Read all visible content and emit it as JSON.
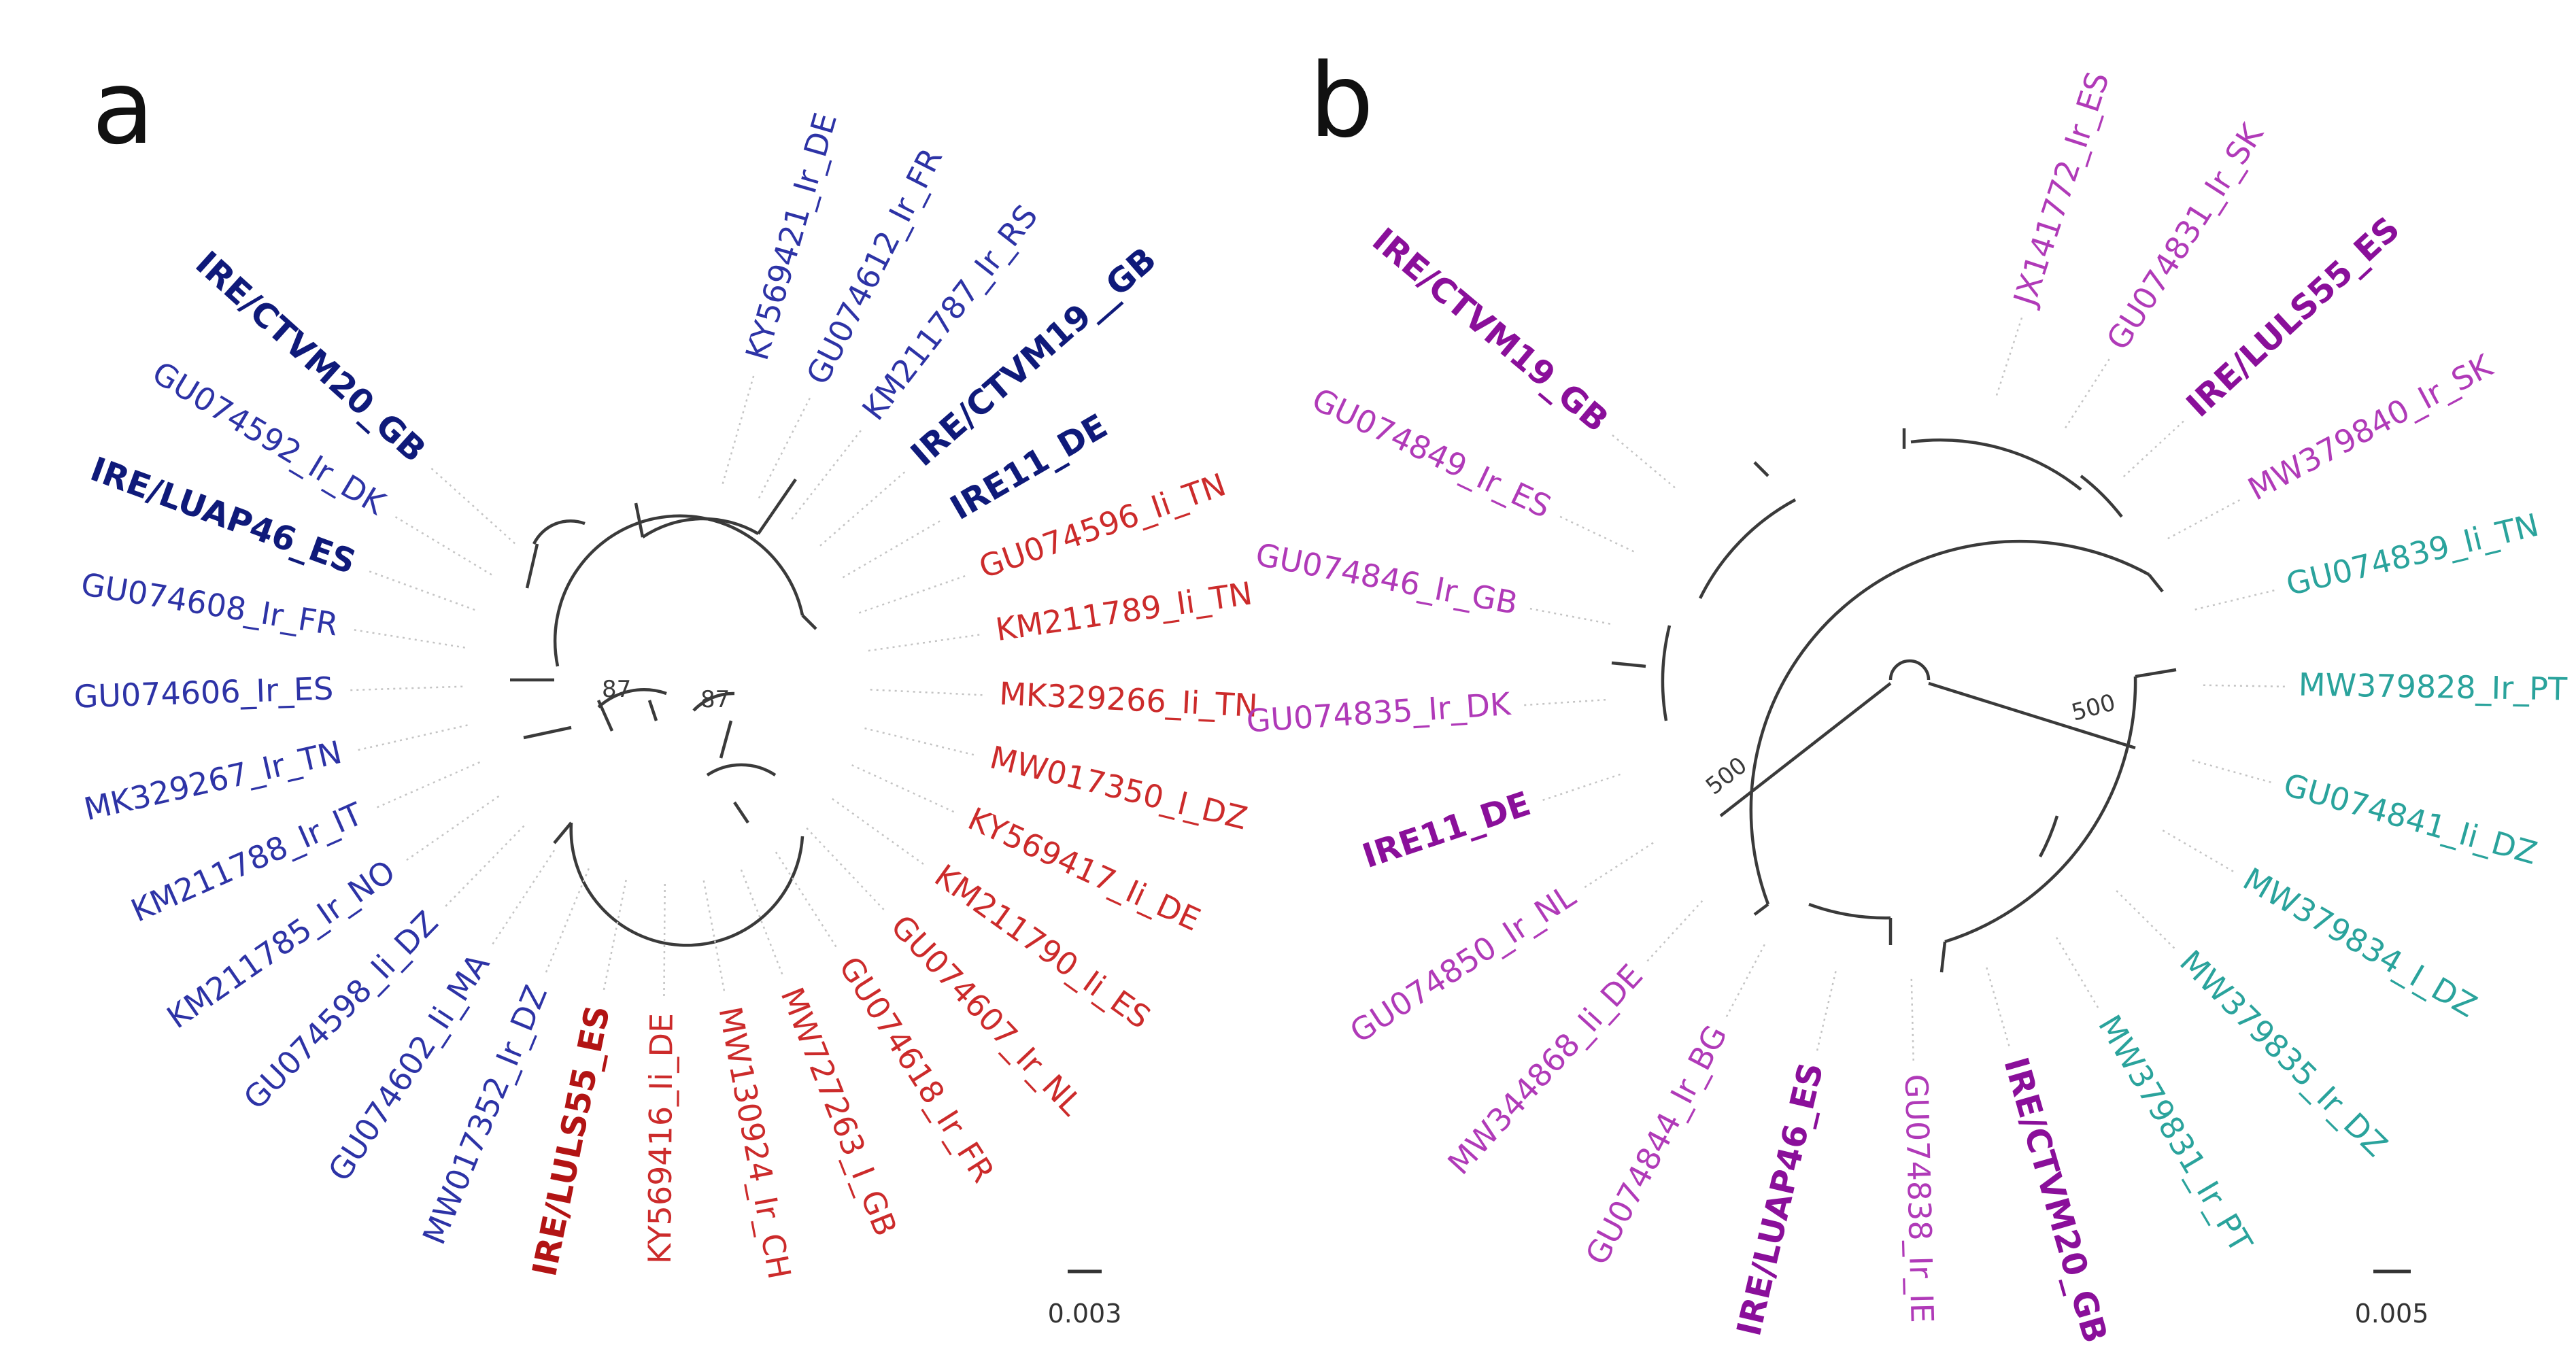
{
  "panels": [
    {
      "letter": "a",
      "scale": "0.003",
      "supports": [
        "87",
        "87"
      ],
      "clades": [
        {
          "name": "clade-blue",
          "color": "#2d33a6",
          "bold_color": "#0f1a7a"
        },
        {
          "name": "clade-red",
          "color": "#cc2b2b",
          "bold_color": "#b21414"
        }
      ],
      "leaves": [
        {
          "label": "KY569421_Ir_DE",
          "clade": 0,
          "bold": false
        },
        {
          "label": "GU074612_Ir_FR",
          "clade": 0,
          "bold": false
        },
        {
          "label": "KM211787_Ir_RS",
          "clade": 0,
          "bold": false
        },
        {
          "label": "IRE/CTVM19__GB",
          "clade": 0,
          "bold": true
        },
        {
          "label": "IRE11_DE",
          "clade": 0,
          "bold": true
        },
        {
          "label": "GU074596_Ii_TN",
          "clade": 1,
          "bold": false
        },
        {
          "label": "KM211789_Ii_TN",
          "clade": 1,
          "bold": false
        },
        {
          "label": "MK329266_Ii_TN",
          "clade": 1,
          "bold": false
        },
        {
          "label": "MW017350_I_DZ",
          "clade": 1,
          "bold": false
        },
        {
          "label": "KY569417_Ii_DE",
          "clade": 1,
          "bold": false
        },
        {
          "label": "KM211790_Ii_ES",
          "clade": 1,
          "bold": false
        },
        {
          "label": "GU074607_Ir_NL",
          "clade": 1,
          "bold": false
        },
        {
          "label": "GU074618_Ir_FR",
          "clade": 1,
          "bold": false
        },
        {
          "label": "MW727263_I_GB",
          "clade": 1,
          "bold": false
        },
        {
          "label": "MW130924_Ir_CH",
          "clade": 1,
          "bold": false
        },
        {
          "label": "KY569416_Ii_DE",
          "clade": 1,
          "bold": false
        },
        {
          "label": "IRE/LULS55_ES",
          "clade": 1,
          "bold": true
        },
        {
          "label": "MW017352_Ir_DZ",
          "clade": 0,
          "bold": false
        },
        {
          "label": "GU074602_Ii_MA",
          "clade": 0,
          "bold": false
        },
        {
          "label": "GU074598_Ii_DZ",
          "clade": 0,
          "bold": false
        },
        {
          "label": "KM211785_Ir_NO",
          "clade": 0,
          "bold": false
        },
        {
          "label": "KM211788_Ir_IT",
          "clade": 0,
          "bold": false
        },
        {
          "label": "MK329267_Ir_TN",
          "clade": 0,
          "bold": false
        },
        {
          "label": "GU074606_Ir_ES",
          "clade": 0,
          "bold": false
        },
        {
          "label": "GU074608_Ir_FR",
          "clade": 0,
          "bold": false
        },
        {
          "label": "IRE/LUAP46_ES",
          "clade": 0,
          "bold": true
        },
        {
          "label": "GU074592_Ir_DK",
          "clade": 0,
          "bold": false
        },
        {
          "label": "IRE/CTVM20_GB",
          "clade": 0,
          "bold": true
        }
      ]
    },
    {
      "letter": "b",
      "scale": "0.005",
      "supports": [
        "500",
        "500"
      ],
      "clades": [
        {
          "name": "clade-purple",
          "color": "#b03ab8",
          "bold_color": "#8a0f9a"
        },
        {
          "name": "clade-teal",
          "color": "#2aa39c",
          "bold_color": "#168c86"
        }
      ],
      "leaves": [
        {
          "label": "JX141772_Ir_ES",
          "clade": 0,
          "bold": false
        },
        {
          "label": "GU074831_Ir_SK",
          "clade": 0,
          "bold": false
        },
        {
          "label": "IRE/LULS55_ES",
          "clade": 0,
          "bold": true
        },
        {
          "label": "MW379840_Ir_SK",
          "clade": 0,
          "bold": false
        },
        {
          "label": "GU074839_Ii_TN",
          "clade": 1,
          "bold": false
        },
        {
          "label": "MW379828_Ir_PT",
          "clade": 1,
          "bold": false
        },
        {
          "label": "GU074841_Ii_DZ",
          "clade": 1,
          "bold": false
        },
        {
          "label": "MW379834_I_DZ",
          "clade": 1,
          "bold": false
        },
        {
          "label": "MW379835_Ir_DZ",
          "clade": 1,
          "bold": false
        },
        {
          "label": "MW379831_Ir_PT",
          "clade": 1,
          "bold": false
        },
        {
          "label": "IRE/CTVM20_GB",
          "clade": 0,
          "bold": true
        },
        {
          "label": "GU074838_Ir_IE",
          "clade": 0,
          "bold": false
        },
        {
          "label": "IRE/LUAP46_ES",
          "clade": 0,
          "bold": true
        },
        {
          "label": "GU074844_Ir_BG",
          "clade": 0,
          "bold": false
        },
        {
          "label": "MW344868_Ii_DE",
          "clade": 0,
          "bold": false
        },
        {
          "label": "GU074850_Ir_NL",
          "clade": 0,
          "bold": false
        },
        {
          "label": "IRE11_DE",
          "clade": 0,
          "bold": true
        },
        {
          "label": "GU074835_Ir_DK",
          "clade": 0,
          "bold": false
        },
        {
          "label": "GU074846_Ir_GB",
          "clade": 0,
          "bold": false
        },
        {
          "label": "GU074849_Ir_ES",
          "clade": 0,
          "bold": false
        },
        {
          "label": "IRE/CTVM19_GB",
          "clade": 0,
          "bold": true
        }
      ]
    }
  ]
}
